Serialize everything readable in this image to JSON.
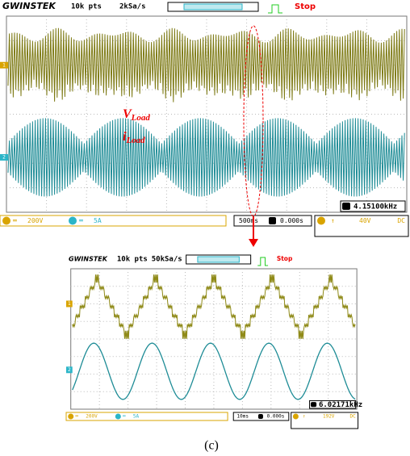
{
  "screens": [
    {
      "header": {
        "brand": "GWINSTEK",
        "points": "10k pts",
        "rate": "2kSa/s",
        "status": "Stop"
      },
      "channel_markers": [
        "1",
        "2"
      ],
      "labels": [
        {
          "main": "V",
          "sub": "Load"
        },
        {
          "main": "i",
          "sub": "Load"
        }
      ],
      "frequency": "4.15100kHz",
      "footer": {
        "ch1_scale": "200V",
        "ch2_scale": "5A",
        "timebase": "500ms",
        "position": "0.000s",
        "trigger_level": "40V",
        "coupling": "DC"
      }
    },
    {
      "header": {
        "brand": "GWINSTEK",
        "points": "10k pts",
        "rate": "50kSa/s",
        "status": "Stop"
      },
      "channel_markers": [
        "1",
        "2"
      ],
      "frequency": "6.02171kHz",
      "footer": {
        "ch1_scale": "200V",
        "ch2_scale": "5A",
        "timebase": "10ms",
        "position": "0.000s",
        "trigger_level": "192V",
        "coupling": "DC"
      }
    }
  ],
  "caption": "(c)"
}
